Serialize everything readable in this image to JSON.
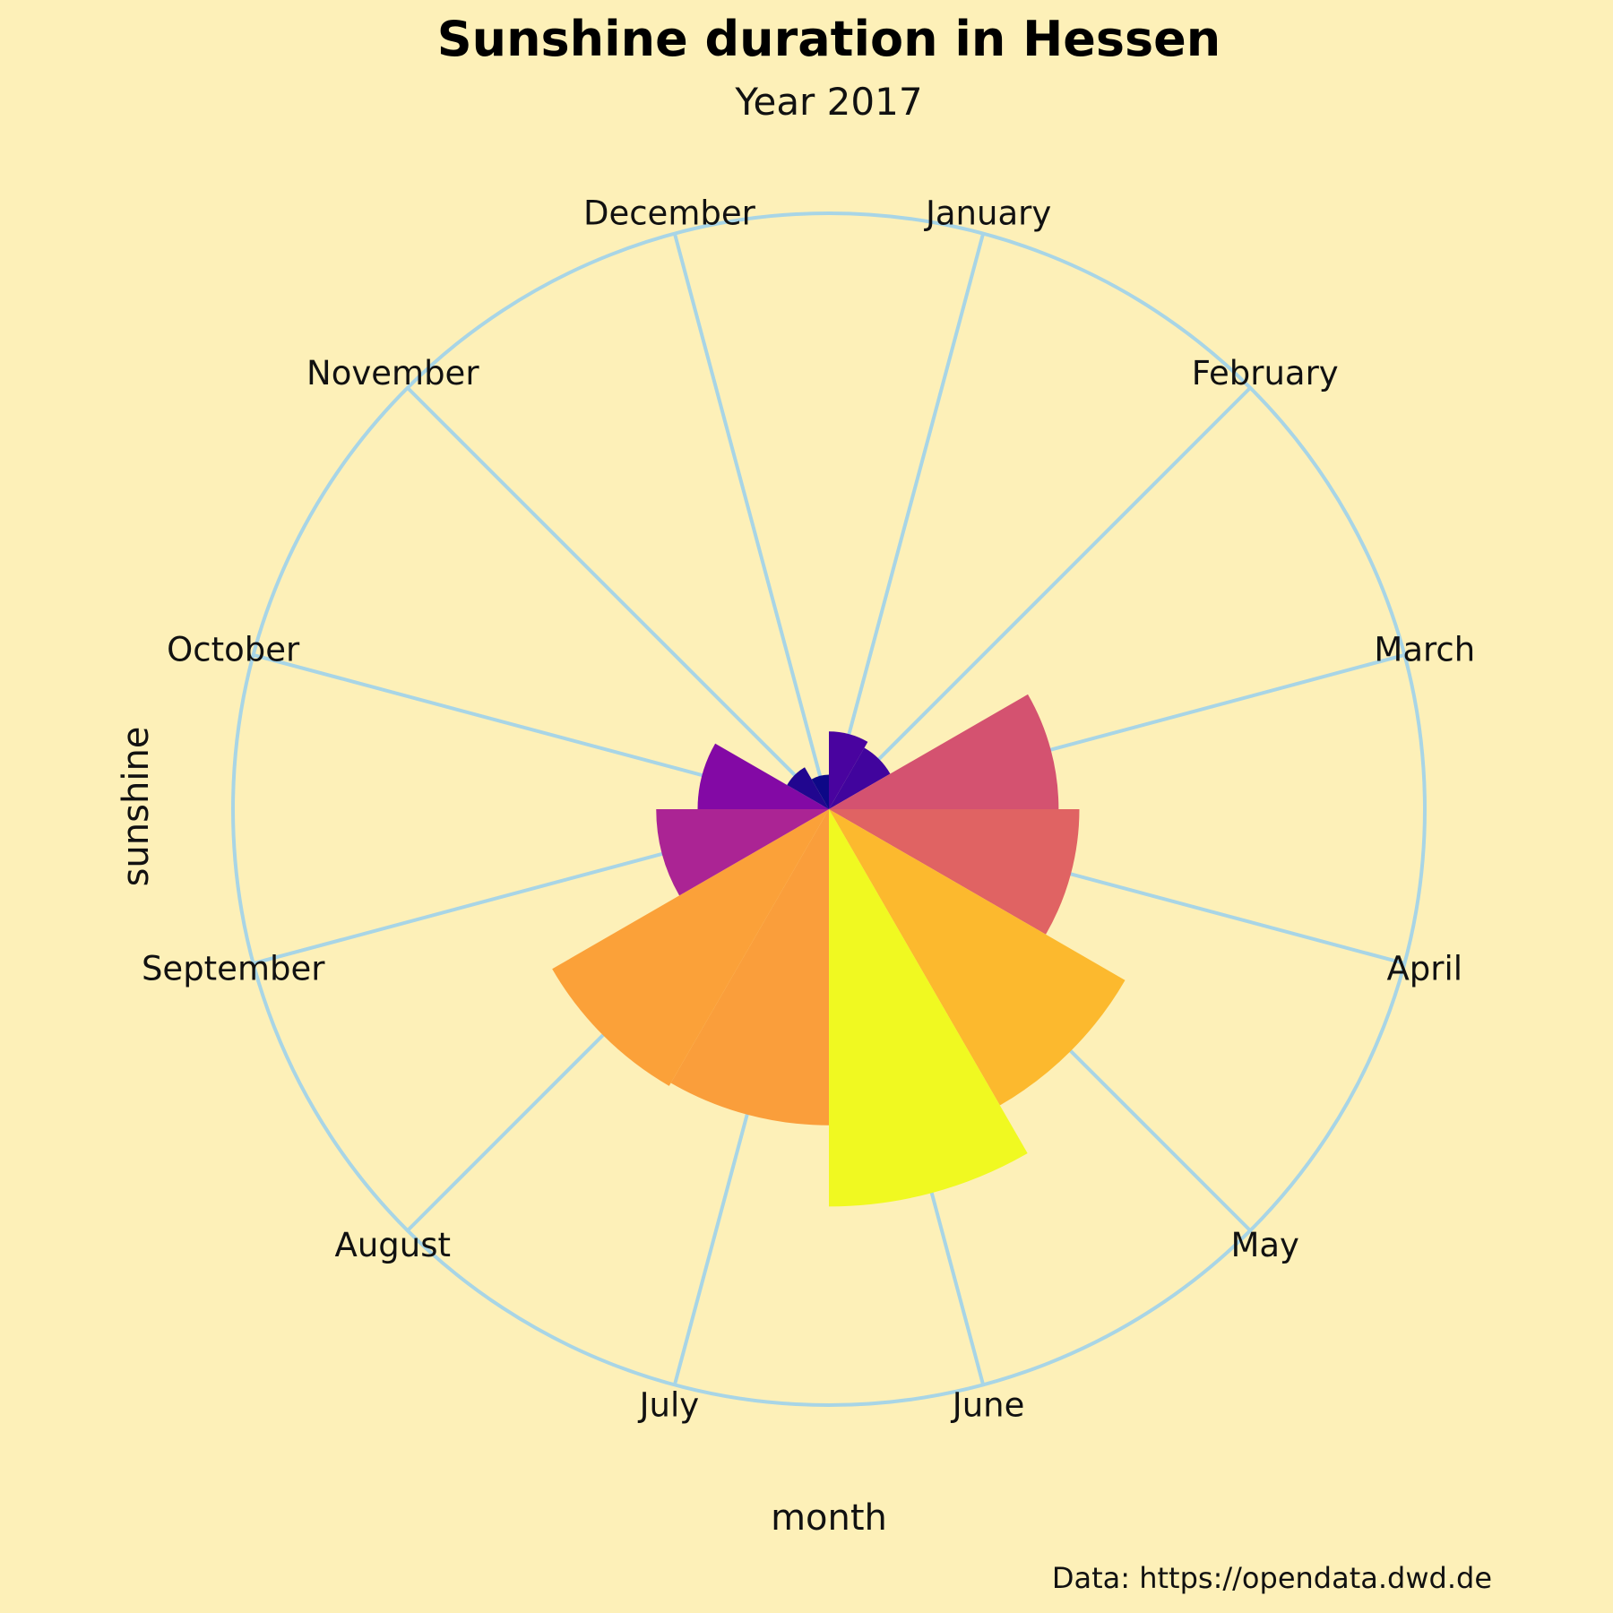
{
  "chart_data": {
    "type": "polar-bar",
    "title": "Sunshine duration in Hessen",
    "subtitle": "Year 2017",
    "xlabel": "month",
    "ylabel": "sunshine",
    "caption": "Data: https://opendata.dwd.de",
    "categories": [
      "January",
      "February",
      "March",
      "April",
      "May",
      "June",
      "July",
      "August",
      "September",
      "October",
      "November",
      "December"
    ],
    "values": [
      45,
      41,
      133,
      145,
      198,
      230,
      183,
      185,
      100,
      76,
      28,
      20
    ],
    "max_value": 345,
    "colors": {
      "background": "#FDF0B8",
      "grid": "#A8D5E6",
      "colormap": "plasma"
    },
    "grid": true
  }
}
